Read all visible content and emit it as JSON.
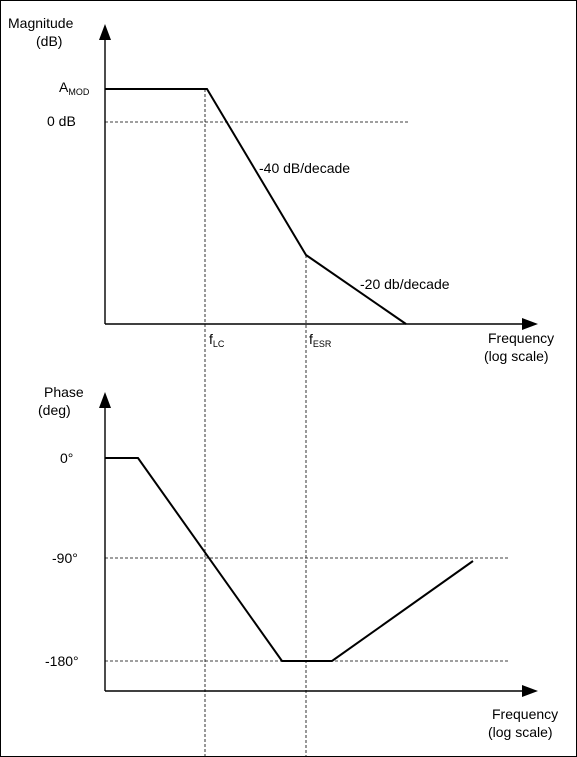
{
  "magnitude_plot": {
    "y_axis_label_line1": "Magnitude",
    "y_axis_label_line2": "(dB)",
    "x_axis_label_line1": "Frequency",
    "x_axis_label_line2": "(log scale)",
    "level_amod_main": "A",
    "level_amod_sub": "MOD",
    "level_0db": "0 dB",
    "slope_label_1": "-40 dB/decade",
    "slope_label_2": "-20 db/decade",
    "freq_flc_main": "f",
    "freq_flc_sub": "LC",
    "freq_fesr_main": "f",
    "freq_fesr_sub": "ESR"
  },
  "phase_plot": {
    "y_axis_label_line1": "Phase",
    "y_axis_label_line2": "(deg)",
    "x_axis_label_line1": "Frequency",
    "x_axis_label_line2": "(log scale)",
    "tick_0": "0°",
    "tick_90": "-90°",
    "tick_180": "-180°"
  }
}
